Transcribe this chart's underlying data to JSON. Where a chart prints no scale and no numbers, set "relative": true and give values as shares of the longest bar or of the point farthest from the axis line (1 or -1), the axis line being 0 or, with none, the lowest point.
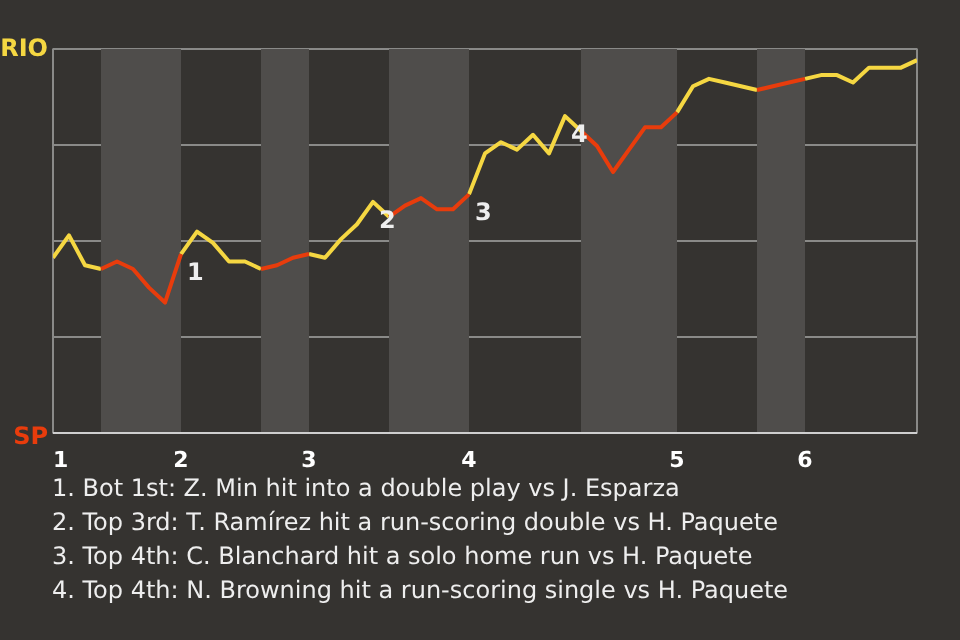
{
  "chart_data": {
    "type": "line",
    "relative": true,
    "categories": [
      "1",
      null,
      null,
      null,
      null,
      null,
      null,
      null,
      "2",
      null,
      null,
      null,
      null,
      null,
      null,
      null,
      "3",
      null,
      null,
      null,
      null,
      null,
      null,
      null,
      null,
      null,
      "4",
      null,
      null,
      null,
      null,
      null,
      null,
      null,
      null,
      null,
      null,
      null,
      null,
      "5",
      null,
      null,
      null,
      null,
      null,
      null,
      null,
      "6",
      null,
      null,
      null,
      null,
      null,
      null,
      null
    ],
    "series": [
      {
        "name": "RIO",
        "color": "#f5d742",
        "values": [
          0.47,
          0.53,
          0.45,
          0.44,
          null,
          null,
          null,
          null,
          0.48,
          0.54,
          0.51,
          0.46,
          0.46,
          0.44,
          null,
          null,
          0.48,
          0.47,
          0.52,
          0.56,
          0.62,
          0.58,
          null,
          null,
          null,
          null,
          0.64,
          0.75,
          0.78,
          0.76,
          0.8,
          0.75,
          0.85,
          0.81,
          null,
          null,
          null,
          null,
          null,
          0.86,
          0.93,
          0.95,
          0.94,
          0.93,
          0.92,
          null,
          null,
          0.95,
          0.96,
          0.96,
          0.94,
          0.98,
          0.98,
          0.98,
          1
        ]
      },
      {
        "name": "SP",
        "color": "#e83c0c",
        "values": [
          null,
          null,
          null,
          0.44,
          0.46,
          0.44,
          0.39,
          0.35,
          0.48,
          null,
          null,
          null,
          null,
          0.44,
          0.45,
          0.47,
          0.48,
          null,
          null,
          null,
          null,
          0.58,
          0.61,
          0.63,
          0.6,
          0.6,
          0.64,
          null,
          null,
          null,
          null,
          null,
          null,
          0.81,
          0.77,
          0.7,
          0.76,
          0.82,
          0.82,
          0.86,
          null,
          null,
          null,
          null,
          0.92,
          0.93,
          0.94,
          0.95,
          null,
          null,
          null,
          null,
          null,
          null,
          null
        ]
      }
    ],
    "grid": "y",
    "annotations": [
      {
        "text": "1",
        "x": "2",
        "y": 0.48
      },
      {
        "text": "2",
        "y": 0.62
      },
      {
        "text": "3",
        "x": "4",
        "y": 0.64
      },
      {
        "text": "4",
        "y": 0.85
      },
      "1. Bot 1st: Z. Min hit into a double play vs J. Esparza",
      "2. Top 3rd: T. Ramírez hit a run-scoring double vs H. Paquete",
      "3. Top 4th: C. Blanchard hit a solo home run vs H. Paquete",
      "4. Top 4th: N. Browning hit a run-scoring single vs H. Paquete"
    ]
  }
}
